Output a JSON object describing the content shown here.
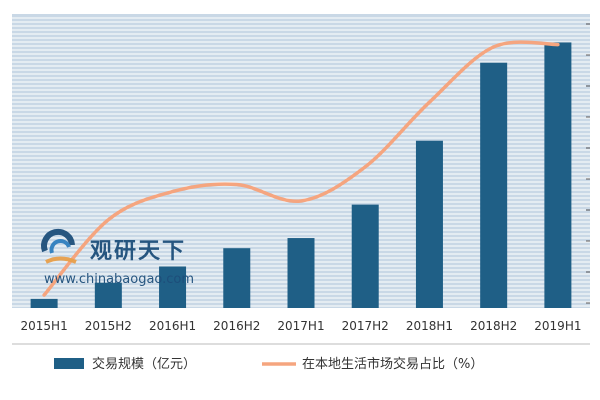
{
  "chart_data": {
    "type": "bar",
    "categories": [
      "2015H1",
      "2015H2",
      "2016H1",
      "2016H2",
      "2017H1",
      "2017H2",
      "2018H1",
      "2018H2",
      "2019H1"
    ],
    "series": [
      {
        "name": "交易规模（亿元）",
        "type": "bar",
        "axis": "left",
        "color": "#1f5f86",
        "values": [
          45,
          125,
          205,
          295,
          345,
          510,
          825,
          1210,
          1310
        ]
      },
      {
        "name": "在本地生活市场交易占比（%）",
        "type": "line",
        "axis": "right",
        "color": "#f5a57f",
        "values": [
          1.1,
          7.5,
          9.9,
          10.5,
          9.1,
          12.0,
          17.5,
          22.2,
          22.4
        ]
      }
    ],
    "ylim": [
      0,
      1450
    ],
    "y2lim": [
      0,
      25
    ],
    "grid": true,
    "legend": "bottom",
    "title": "",
    "xlabel": "",
    "ylabel": ""
  },
  "watermark": {
    "title": "观研天下",
    "url": "www.chinabaogao.com"
  },
  "colors": {
    "plot_bg": "#c9d8e6",
    "grid": "#ffffff",
    "bar": "#1f5f86",
    "line": "#f5a57f"
  }
}
